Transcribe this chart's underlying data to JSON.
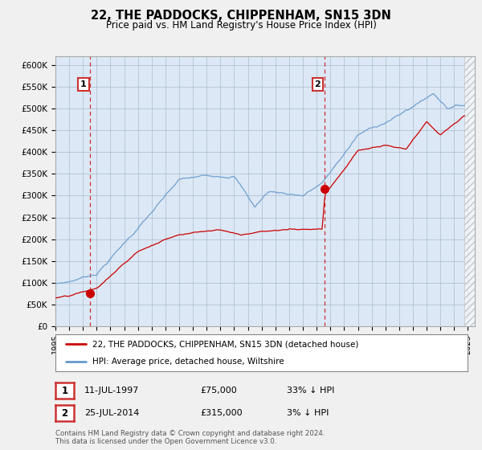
{
  "title": "22, THE PADDOCKS, CHIPPENHAM, SN15 3DN",
  "subtitle": "Price paid vs. HM Land Registry's House Price Index (HPI)",
  "legend_label_red": "22, THE PADDOCKS, CHIPPENHAM, SN15 3DN (detached house)",
  "legend_label_blue": "HPI: Average price, detached house, Wiltshire",
  "annotation1_date": "11-JUL-1997",
  "annotation1_price": "£75,000",
  "annotation1_hpi": "33% ↓ HPI",
  "annotation1_year": 1997.54,
  "annotation1_value": 75000,
  "annotation2_date": "25-JUL-2014",
  "annotation2_price": "£315,000",
  "annotation2_hpi": "3% ↓ HPI",
  "annotation2_year": 2014.56,
  "annotation2_value": 315000,
  "footer1": "Contains HM Land Registry data © Crown copyright and database right 2024.",
  "footer2": "This data is licensed under the Open Government Licence v3.0.",
  "ylim": [
    0,
    620000
  ],
  "yticks": [
    0,
    50000,
    100000,
    150000,
    200000,
    250000,
    300000,
    350000,
    400000,
    450000,
    500000,
    550000,
    600000
  ],
  "ytick_labels": [
    "£0",
    "£50K",
    "£100K",
    "£150K",
    "£200K",
    "£250K",
    "£300K",
    "£350K",
    "£400K",
    "£450K",
    "£500K",
    "£550K",
    "£600K"
  ],
  "xlim_start": 1995.0,
  "xlim_end": 2025.5,
  "background_color": "#f0f0f0",
  "plot_bg_color": "#dce8f5",
  "red_color": "#cc0000",
  "blue_color": "#6699cc",
  "grid_color": "#aabbcc",
  "dashed_color": "#cc3333"
}
